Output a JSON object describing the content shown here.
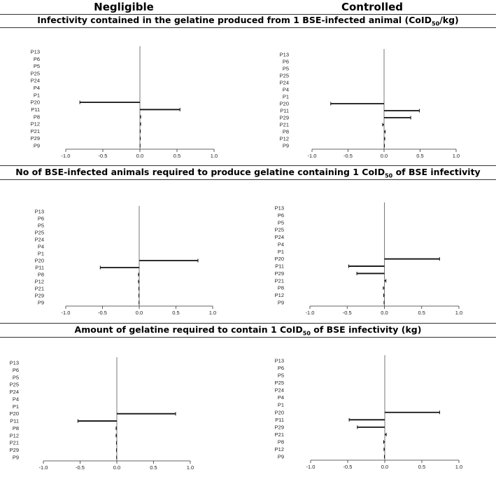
{
  "columns": [
    "Negligible",
    "Controlled"
  ],
  "sections": [
    {
      "title": "Infectivity contained in the gelatine produced from 1 BSE-infected animal (CoID",
      "subscript": "50",
      "title_suffix": "/kg)"
    },
    {
      "title": "No of BSE-infected animals required to produce gelatine containing 1 CoID",
      "subscript": "50",
      "title_suffix": " of BSE infectivity"
    },
    {
      "title": "Amount of gelatine required to contain 1 CoID",
      "subscript": "50",
      "title_suffix": " of BSE infectivity (kg)"
    }
  ],
  "chart_data": [
    {
      "type": "tornado-bar",
      "section": 0,
      "column": "Negligible",
      "xlim": [
        -1.0,
        1.0
      ],
      "ticks": [
        -1.0,
        -0.5,
        0.0,
        0.5,
        1.0
      ],
      "tick_labels": [
        "-1.0",
        "-0.5",
        "0.0",
        "0.5",
        "1.0"
      ],
      "categories": [
        "P13",
        "P6",
        "P5",
        "P25",
        "P24",
        "P4",
        "P1",
        "P20",
        "P11",
        "P8",
        "P12",
        "P21",
        "P29",
        "P9"
      ],
      "values": [
        0,
        0,
        0,
        0,
        0,
        0,
        0,
        -0.81,
        0.54,
        0.01,
        0.01,
        0.005,
        0.005,
        0.003
      ]
    },
    {
      "type": "tornado-bar",
      "section": 0,
      "column": "Controlled",
      "xlim": [
        -1.0,
        1.0
      ],
      "ticks": [
        -1.0,
        -0.5,
        0.0,
        0.5,
        1.0
      ],
      "tick_labels": [
        "-1.0",
        "-0.5",
        "0.0",
        "0.5",
        "1.0"
      ],
      "categories": [
        "P13",
        "P6",
        "P5",
        "P25",
        "P24",
        "P4",
        "P1",
        "P20",
        "P11",
        "P29",
        "P21",
        "P8",
        "P12",
        "P9"
      ],
      "values": [
        0,
        0,
        0,
        0,
        0,
        0,
        0,
        -0.74,
        0.49,
        0.37,
        -0.02,
        0.015,
        0.01,
        0.005
      ]
    },
    {
      "type": "tornado-bar",
      "section": 1,
      "column": "Negligible",
      "xlim": [
        -1.0,
        1.0
      ],
      "ticks": [
        -1.0,
        -0.5,
        0.0,
        0.5,
        1.0
      ],
      "tick_labels": [
        "-1.0",
        "-0.5",
        "0.0",
        "0.5",
        "1.0"
      ],
      "categories": [
        "P13",
        "P6",
        "P5",
        "P25",
        "P24",
        "P4",
        "P1",
        "P20",
        "P11",
        "P8",
        "P12",
        "P21",
        "P29",
        "P9"
      ],
      "values": [
        0,
        0,
        0,
        0,
        0,
        0,
        0,
        0.8,
        -0.53,
        -0.01,
        -0.01,
        -0.005,
        -0.005,
        -0.003
      ]
    },
    {
      "type": "tornado-bar",
      "section": 1,
      "column": "Controlled",
      "xlim": [
        -1.0,
        1.0
      ],
      "ticks": [
        -1.0,
        -0.5,
        0.0,
        0.5,
        1.0
      ],
      "tick_labels": [
        "-1.0",
        "-0.5",
        "0.0",
        "0.5",
        "1.0"
      ],
      "categories": [
        "P13",
        "P6",
        "P5",
        "P25",
        "P24",
        "P4",
        "P1",
        "P20",
        "P11",
        "P29",
        "P21",
        "P8",
        "P12",
        "P9"
      ],
      "values": [
        0,
        0,
        0,
        0,
        0,
        0,
        0,
        0.74,
        -0.48,
        -0.37,
        0.02,
        -0.015,
        -0.01,
        -0.005
      ]
    },
    {
      "type": "tornado-bar",
      "section": 2,
      "column": "Negligible",
      "xlim": [
        -1.0,
        1.0
      ],
      "ticks": [
        -1.0,
        -0.5,
        0.0,
        0.5,
        1.0
      ],
      "tick_labels": [
        "-1.0",
        "-0.5",
        "0.0",
        "0.5",
        "1.0"
      ],
      "categories": [
        "P13",
        "P6",
        "P5",
        "P25",
        "P24",
        "P4",
        "P1",
        "P20",
        "P11",
        "P8",
        "P12",
        "P21",
        "P29",
        "P9"
      ],
      "values": [
        0,
        0,
        0,
        0,
        0,
        0,
        0,
        0.8,
        -0.53,
        -0.01,
        -0.01,
        -0.005,
        -0.005,
        -0.003
      ]
    },
    {
      "type": "tornado-bar",
      "section": 2,
      "column": "Controlled",
      "xlim": [
        -1.0,
        1.0
      ],
      "ticks": [
        -1.0,
        -0.5,
        0.0,
        0.5,
        1.0
      ],
      "tick_labels": [
        "-1.0",
        "-0.5",
        "0.0",
        "0.5",
        "1.0"
      ],
      "categories": [
        "P13",
        "P6",
        "P5",
        "P25",
        "P24",
        "P4",
        "P1",
        "P20",
        "P11",
        "P29",
        "P21",
        "P8",
        "P12",
        "P9"
      ],
      "values": [
        0,
        0,
        0,
        0,
        0,
        0,
        0,
        0.74,
        -0.48,
        -0.37,
        0.02,
        -0.015,
        -0.01,
        -0.005
      ]
    }
  ]
}
